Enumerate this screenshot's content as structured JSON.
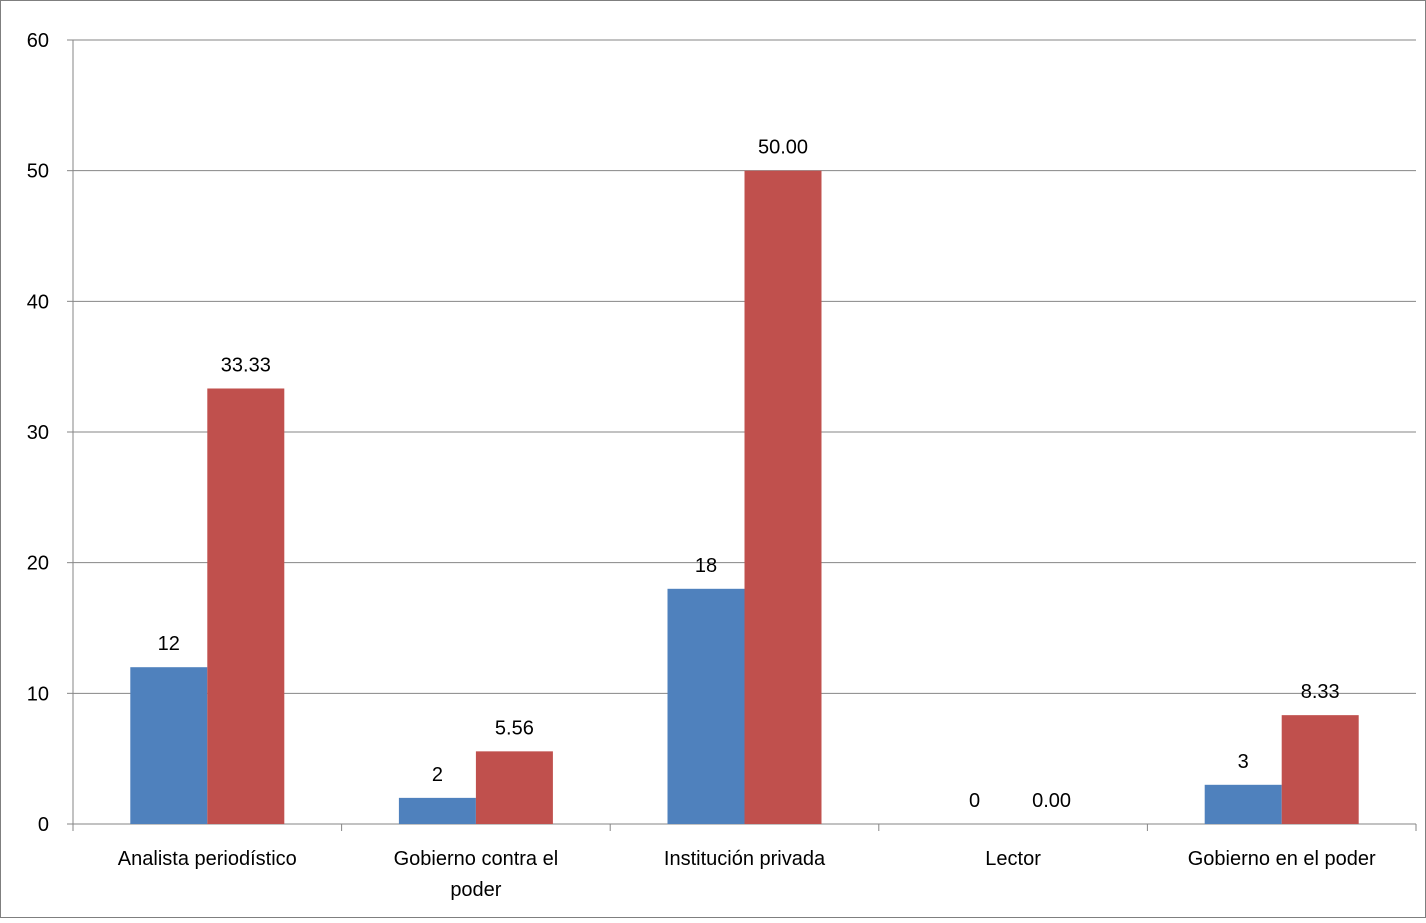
{
  "chart_data": {
    "type": "bar",
    "title": "",
    "xlabel": "",
    "ylabel": "",
    "ylim": [
      0,
      60
    ],
    "yticks": [
      "0",
      "10",
      "20",
      "30",
      "40",
      "50",
      "60"
    ],
    "grid": true,
    "legend": "none",
    "categories": [
      [
        "Analista periodístico"
      ],
      [
        "Gobierno contra el",
        "poder"
      ],
      [
        "Institución privada"
      ],
      [
        "Lector"
      ],
      [
        "Gobierno en el poder"
      ]
    ],
    "series": [
      {
        "values": [
          12,
          2,
          18,
          0,
          3
        ],
        "labels": [
          "12",
          "2",
          "18",
          "0",
          "3"
        ],
        "color": "#4F81BD"
      },
      {
        "values": [
          33.33,
          5.56,
          50.0,
          0.0,
          8.33
        ],
        "labels": [
          "33.33",
          "5.56",
          "50.00",
          "0.00",
          "8.33"
        ],
        "color": "#C0504D"
      }
    ]
  }
}
